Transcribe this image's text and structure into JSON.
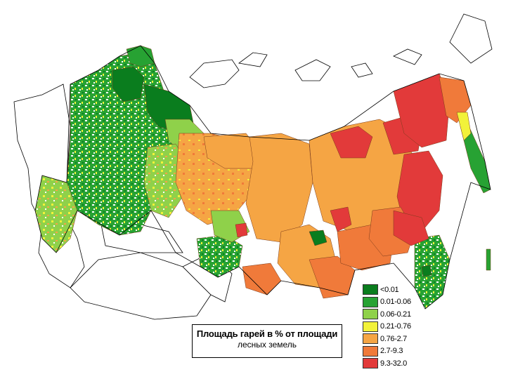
{
  "map": {
    "title_line1": "Площадь гарей в % от площади",
    "title_line2": "лесных земель",
    "background_color": "#ffffff",
    "border_color": "#000000"
  },
  "legend": {
    "items": [
      {
        "label": "<0.01",
        "color": "#0a7d1e"
      },
      {
        "label": "0.01-0.06",
        "color": "#27a233"
      },
      {
        "label": "0.06-0.21",
        "color": "#8fd14a"
      },
      {
        "label": "0.21-0.76",
        "color": "#f2f23a"
      },
      {
        "label": "0.76-2.7",
        "color": "#f5a544"
      },
      {
        "label": "2.7-9.3",
        "color": "#f07a3a"
      },
      {
        "label": "9.3-32.0",
        "color": "#e23a3a"
      }
    ]
  }
}
